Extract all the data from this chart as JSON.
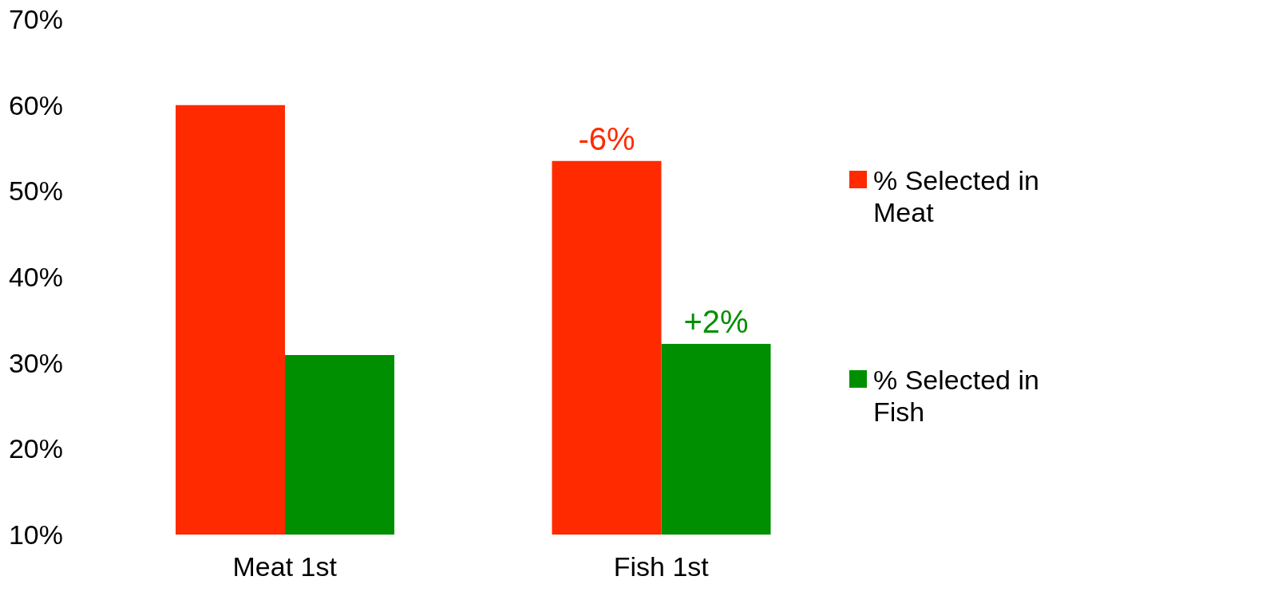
{
  "chart_data": {
    "type": "bar",
    "categories": [
      "Meat 1st",
      "Fish 1st"
    ],
    "series": [
      {
        "name": "% Selected in Meat",
        "color": "#ff2a00",
        "values": [
          60,
          53.5
        ]
      },
      {
        "name": "% Selected in Fish",
        "color": "#008f00",
        "values": [
          30.9,
          32.2
        ]
      }
    ],
    "ylim": [
      10,
      70
    ],
    "yticks": [
      {
        "value": 10,
        "label": "10%"
      },
      {
        "value": 20,
        "label": "20%"
      },
      {
        "value": 30,
        "label": "30%"
      },
      {
        "value": 40,
        "label": "40%"
      },
      {
        "value": 50,
        "label": "50%"
      },
      {
        "value": 60,
        "label": "60%"
      },
      {
        "value": 70,
        "label": "70%"
      }
    ],
    "grid": false,
    "legend": "right",
    "annotations": [
      {
        "text": "-6%",
        "x": "Fish 1st",
        "y": 53.5
      },
      {
        "text": "+2%",
        "x": "Fish 1st",
        "y": 32.2
      }
    ]
  }
}
